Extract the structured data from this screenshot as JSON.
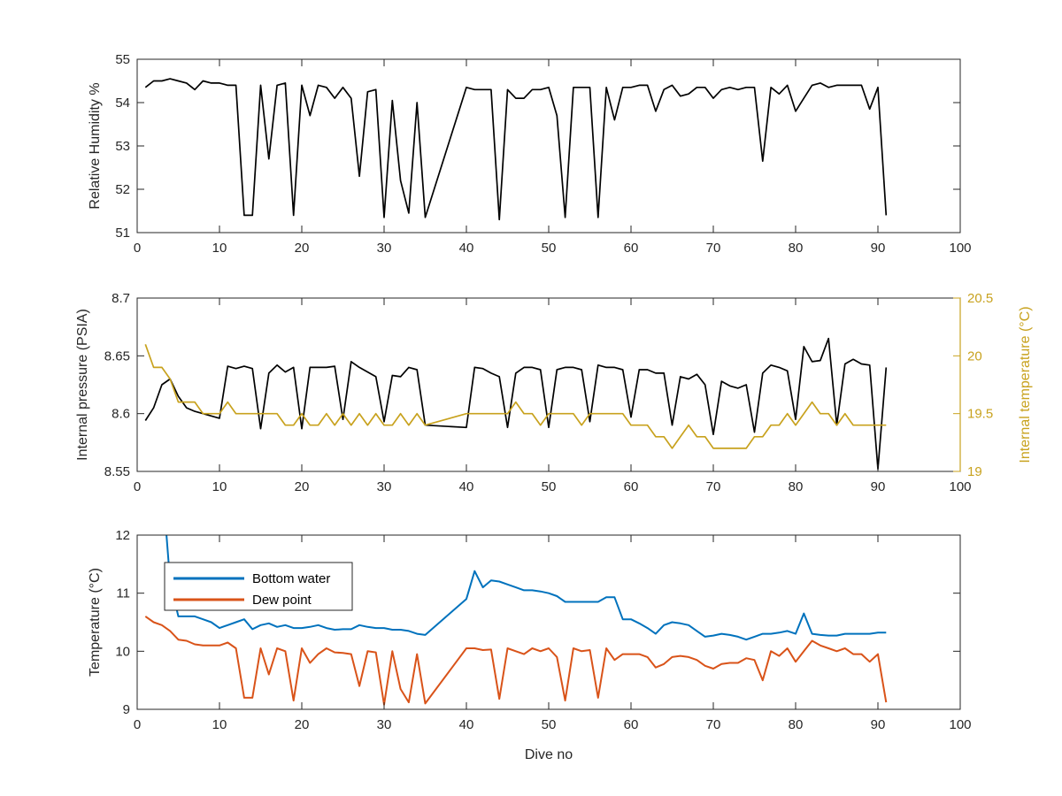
{
  "chart_data": [
    {
      "type": "line",
      "ylabel": "Relative Humidity %",
      "xlim": [
        0,
        100
      ],
      "ylim": [
        51,
        55
      ],
      "xticks": [
        "0",
        "10",
        "20",
        "30",
        "40",
        "50",
        "60",
        "70",
        "80",
        "90",
        "100"
      ],
      "yticks": [
        "51",
        "52",
        "53",
        "54",
        "55"
      ],
      "series": [
        {
          "color": "#000000",
          "x": [
            1,
            2,
            3,
            4,
            5,
            6,
            7,
            8,
            9,
            10,
            11,
            12,
            13,
            14,
            15,
            16,
            17,
            18,
            19,
            20,
            21,
            22,
            23,
            24,
            25,
            26,
            27,
            28,
            29,
            30,
            31,
            32,
            33,
            34,
            35,
            40,
            41,
            42,
            43,
            44,
            45,
            46,
            47,
            48,
            49,
            50,
            51,
            52,
            53,
            54,
            55,
            56,
            57,
            58,
            59,
            60,
            61,
            62,
            63,
            64,
            65,
            66,
            67,
            68,
            69,
            70,
            71,
            72,
            73,
            74,
            75,
            76,
            77,
            78,
            79,
            80,
            81,
            82,
            83,
            84,
            85,
            86,
            87,
            88,
            89,
            90,
            91
          ],
          "y": [
            54.35,
            54.5,
            54.5,
            54.55,
            54.5,
            54.45,
            54.3,
            54.5,
            54.45,
            54.45,
            54.4,
            54.4,
            51.4,
            51.4,
            54.4,
            52.7,
            54.4,
            54.45,
            51.4,
            54.4,
            53.7,
            54.4,
            54.35,
            54.1,
            54.35,
            54.1,
            52.3,
            54.25,
            54.3,
            51.35,
            54.05,
            52.2,
            51.45,
            54.0,
            51.35,
            54.35,
            54.3,
            54.3,
            54.3,
            51.3,
            54.3,
            54.1,
            54.1,
            54.3,
            54.3,
            54.35,
            53.7,
            51.35,
            54.35,
            54.35,
            54.35,
            51.35,
            54.35,
            53.6,
            54.35,
            54.35,
            54.4,
            54.4,
            53.8,
            54.3,
            54.4,
            54.15,
            54.2,
            54.35,
            54.35,
            54.1,
            54.3,
            54.35,
            54.3,
            54.35,
            54.35,
            52.65,
            54.35,
            54.2,
            54.4,
            53.8,
            54.1,
            54.4,
            54.45,
            54.35,
            54.4,
            54.4,
            54.4,
            54.4,
            53.85,
            54.35,
            51.4
          ]
        }
      ]
    },
    {
      "type": "line",
      "ylabel": "Internal pressure (PSIA)",
      "ylabel_right": "Internal temperature (°C)",
      "xlim": [
        0,
        100
      ],
      "ylim": [
        8.55,
        8.7
      ],
      "ylim_right": [
        19,
        20.5
      ],
      "xticks": [
        "0",
        "10",
        "20",
        "30",
        "40",
        "50",
        "60",
        "70",
        "80",
        "90",
        "100"
      ],
      "yticks": [
        "8.55",
        "8.6",
        "8.65",
        "8.7"
      ],
      "yticks_right": [
        "19",
        "19.5",
        "20",
        "20.5"
      ],
      "series": [
        {
          "color": "#000000",
          "axis": "left",
          "x": [
            1,
            2,
            3,
            4,
            5,
            6,
            7,
            8,
            9,
            10,
            11,
            12,
            13,
            14,
            15,
            16,
            17,
            18,
            19,
            20,
            21,
            22,
            23,
            24,
            25,
            26,
            27,
            28,
            29,
            30,
            31,
            32,
            33,
            34,
            35,
            40,
            41,
            42,
            43,
            44,
            45,
            46,
            47,
            48,
            49,
            50,
            51,
            52,
            53,
            54,
            55,
            56,
            57,
            58,
            59,
            60,
            61,
            62,
            63,
            64,
            65,
            66,
            67,
            68,
            69,
            70,
            71,
            72,
            73,
            74,
            75,
            76,
            77,
            78,
            79,
            80,
            81,
            82,
            83,
            84,
            85,
            86,
            87,
            88,
            89,
            90,
            91
          ],
          "y": [
            8.594,
            8.605,
            8.625,
            8.63,
            8.615,
            8.605,
            8.602,
            8.6,
            8.598,
            8.596,
            8.641,
            8.639,
            8.641,
            8.639,
            8.587,
            8.635,
            8.642,
            8.636,
            8.64,
            8.587,
            8.64,
            8.64,
            8.64,
            8.641,
            8.595,
            8.645,
            8.64,
            8.636,
            8.632,
            8.593,
            8.633,
            8.632,
            8.64,
            8.638,
            8.59,
            8.588,
            8.64,
            8.639,
            8.635,
            8.632,
            8.588,
            8.635,
            8.64,
            8.64,
            8.638,
            8.588,
            8.638,
            8.64,
            8.64,
            8.638,
            8.593,
            8.642,
            8.64,
            8.64,
            8.638,
            8.597,
            8.638,
            8.638,
            8.635,
            8.635,
            8.59,
            8.632,
            8.63,
            8.634,
            8.625,
            8.582,
            8.628,
            8.624,
            8.622,
            8.625,
            8.584,
            8.635,
            8.642,
            8.64,
            8.637,
            8.595,
            8.658,
            8.645,
            8.646,
            8.665,
            8.59,
            8.643,
            8.647,
            8.643,
            8.642,
            8.552,
            8.64
          ]
        },
        {
          "color": "#c8a21e",
          "axis": "right",
          "x": [
            1,
            2,
            3,
            4,
            5,
            6,
            7,
            8,
            9,
            10,
            11,
            12,
            13,
            14,
            15,
            16,
            17,
            18,
            19,
            20,
            21,
            22,
            23,
            24,
            25,
            26,
            27,
            28,
            29,
            30,
            31,
            32,
            33,
            34,
            35,
            40,
            41,
            42,
            43,
            44,
            45,
            46,
            47,
            48,
            49,
            50,
            51,
            52,
            53,
            54,
            55,
            56,
            57,
            58,
            59,
            60,
            61,
            62,
            63,
            64,
            65,
            66,
            67,
            68,
            69,
            70,
            71,
            72,
            73,
            74,
            75,
            76,
            77,
            78,
            79,
            80,
            81,
            82,
            83,
            84,
            85,
            86,
            87,
            88,
            89,
            90,
            91
          ],
          "y": [
            20.1,
            19.9,
            19.9,
            19.8,
            19.6,
            19.6,
            19.6,
            19.5,
            19.5,
            19.5,
            19.6,
            19.5,
            19.5,
            19.5,
            19.5,
            19.5,
            19.5,
            19.4,
            19.4,
            19.5,
            19.4,
            19.4,
            19.5,
            19.4,
            19.5,
            19.4,
            19.5,
            19.4,
            19.5,
            19.4,
            19.4,
            19.5,
            19.4,
            19.5,
            19.4,
            19.5,
            19.5,
            19.5,
            19.5,
            19.5,
            19.5,
            19.6,
            19.5,
            19.5,
            19.4,
            19.5,
            19.5,
            19.5,
            19.5,
            19.4,
            19.5,
            19.5,
            19.5,
            19.5,
            19.5,
            19.4,
            19.4,
            19.4,
            19.3,
            19.3,
            19.2,
            19.3,
            19.4,
            19.3,
            19.3,
            19.2,
            19.2,
            19.2,
            19.2,
            19.2,
            19.3,
            19.3,
            19.4,
            19.4,
            19.5,
            19.4,
            19.5,
            19.6,
            19.5,
            19.5,
            19.4,
            19.5,
            19.4,
            19.4,
            19.4,
            19.4,
            19.4
          ]
        }
      ]
    },
    {
      "type": "line",
      "xlabel": "Dive no",
      "ylabel": "Temperature (°C)",
      "xlim": [
        0,
        100
      ],
      "ylim": [
        9,
        12
      ],
      "xticks": [
        "0",
        "10",
        "20",
        "30",
        "40",
        "50",
        "60",
        "70",
        "80",
        "90",
        "100"
      ],
      "yticks": [
        "9",
        "10",
        "11",
        "12"
      ],
      "legend": {
        "placement": "top-left",
        "entries": [
          "Bottom water",
          "Dew point"
        ]
      },
      "series": [
        {
          "name": "Bottom water",
          "color": "#0072bd",
          "x": [
            3.5,
            4,
            5,
            6,
            7,
            8,
            9,
            10,
            11,
            12,
            13,
            14,
            15,
            16,
            17,
            18,
            19,
            20,
            21,
            22,
            23,
            24,
            25,
            26,
            27,
            28,
            29,
            30,
            31,
            32,
            33,
            34,
            35,
            40,
            41,
            42,
            43,
            44,
            45,
            46,
            47,
            48,
            49,
            50,
            51,
            52,
            53,
            54,
            55,
            56,
            57,
            58,
            59,
            60,
            61,
            62,
            63,
            64,
            65,
            66,
            67,
            68,
            69,
            70,
            71,
            72,
            73,
            74,
            75,
            76,
            77,
            78,
            79,
            80,
            81,
            82,
            83,
            84,
            85,
            86,
            87,
            88,
            89,
            90,
            91
          ],
          "y": [
            12.1,
            11.2,
            10.6,
            10.6,
            10.6,
            10.55,
            10.5,
            10.4,
            10.45,
            10.5,
            10.55,
            10.38,
            10.45,
            10.48,
            10.42,
            10.45,
            10.4,
            10.4,
            10.42,
            10.45,
            10.4,
            10.37,
            10.38,
            10.38,
            10.45,
            10.42,
            10.4,
            10.4,
            10.37,
            10.37,
            10.35,
            10.3,
            10.28,
            10.9,
            11.38,
            11.1,
            11.22,
            11.2,
            11.15,
            11.1,
            11.05,
            11.05,
            11.03,
            11.0,
            10.95,
            10.85,
            10.85,
            10.85,
            10.85,
            10.85,
            10.93,
            10.93,
            10.55,
            10.55,
            10.48,
            10.4,
            10.3,
            10.45,
            10.5,
            10.48,
            10.45,
            10.35,
            10.25,
            10.27,
            10.3,
            10.28,
            10.25,
            10.2,
            10.25,
            10.3,
            10.3,
            10.32,
            10.35,
            10.3,
            10.65,
            10.3,
            10.28,
            10.27,
            10.27,
            10.3,
            10.3,
            10.3,
            10.3,
            10.32,
            10.32
          ]
        },
        {
          "name": "Dew point",
          "color": "#d95319",
          "x": [
            1,
            2,
            3,
            4,
            5,
            6,
            7,
            8,
            9,
            10,
            11,
            12,
            13,
            14,
            15,
            16,
            17,
            18,
            19,
            20,
            21,
            22,
            23,
            24,
            25,
            26,
            27,
            28,
            29,
            30,
            31,
            32,
            33,
            34,
            35,
            40,
            41,
            42,
            43,
            44,
            45,
            46,
            47,
            48,
            49,
            50,
            51,
            52,
            53,
            54,
            55,
            56,
            57,
            58,
            59,
            60,
            61,
            62,
            63,
            64,
            65,
            66,
            67,
            68,
            69,
            70,
            71,
            72,
            73,
            74,
            75,
            76,
            77,
            78,
            79,
            80,
            81,
            82,
            83,
            84,
            85,
            86,
            87,
            88,
            89,
            90,
            91
          ],
          "y": [
            10.6,
            10.5,
            10.45,
            10.35,
            10.2,
            10.18,
            10.12,
            10.1,
            10.1,
            10.1,
            10.15,
            10.05,
            9.2,
            9.2,
            10.05,
            9.6,
            10.05,
            10.0,
            9.15,
            10.05,
            9.8,
            9.95,
            10.05,
            9.98,
            9.97,
            9.95,
            9.4,
            10.0,
            9.98,
            9.08,
            10.0,
            9.35,
            9.12,
            9.95,
            9.1,
            10.05,
            10.05,
            10.02,
            10.03,
            9.18,
            10.05,
            10.0,
            9.95,
            10.05,
            10.0,
            10.05,
            9.9,
            9.15,
            10.05,
            10.0,
            10.02,
            9.2,
            10.05,
            9.85,
            9.95,
            9.95,
            9.95,
            9.9,
            9.72,
            9.78,
            9.9,
            9.92,
            9.9,
            9.85,
            9.75,
            9.7,
            9.78,
            9.8,
            9.8,
            9.88,
            9.85,
            9.5,
            10.0,
            9.92,
            10.05,
            9.82,
            10.0,
            10.18,
            10.1,
            10.05,
            10.0,
            10.05,
            9.95,
            9.95,
            9.82,
            9.95,
            9.12
          ]
        }
      ]
    }
  ]
}
